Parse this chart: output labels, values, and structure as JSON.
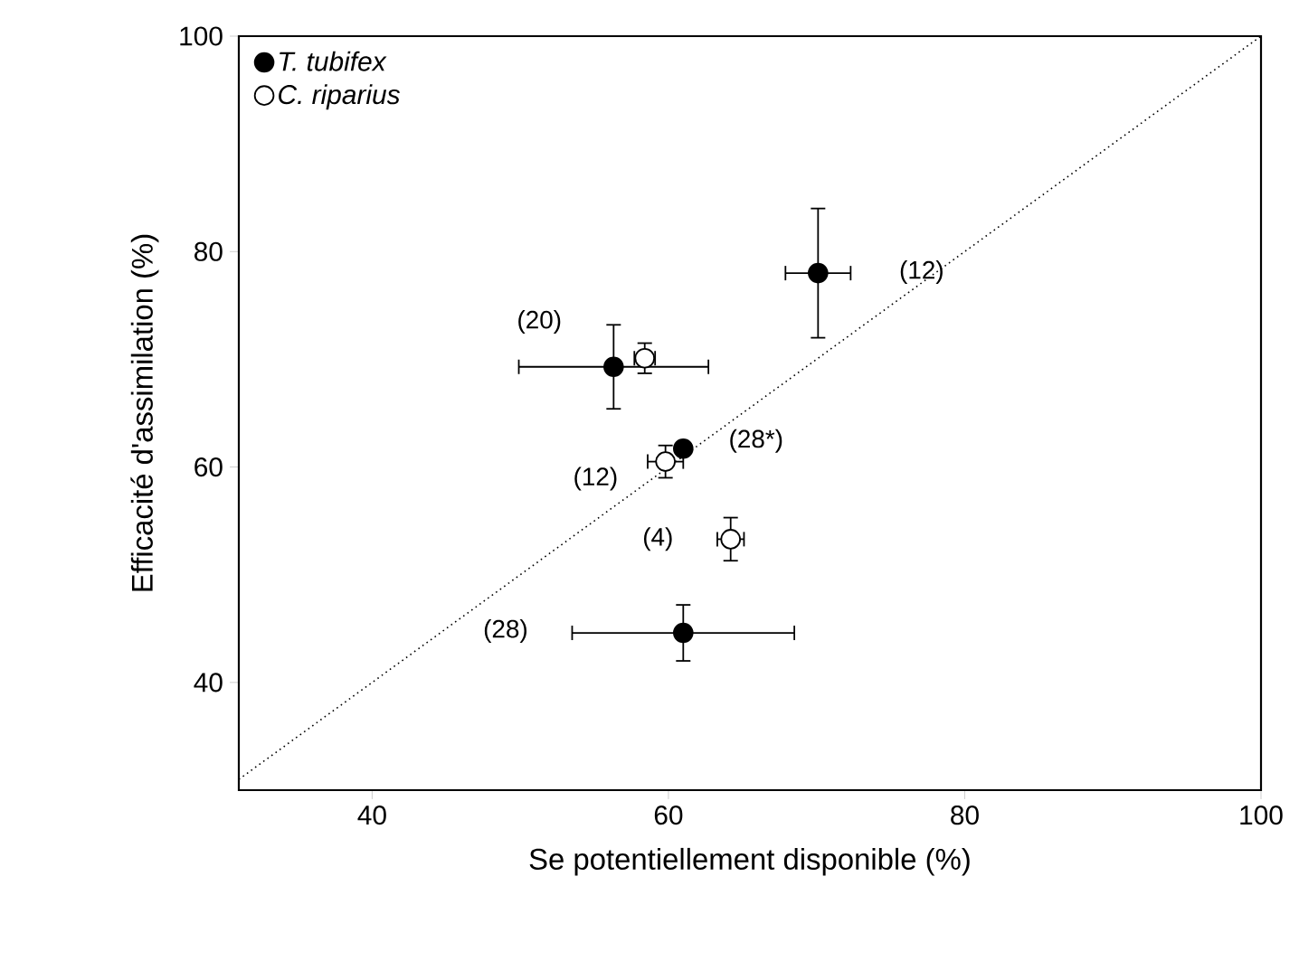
{
  "chart_data": {
    "type": "scatter",
    "xlabel": "Se potentiellement disponible (%)",
    "ylabel": "Efficacité d'assimilation (%)",
    "xlim": [
      31,
      100
    ],
    "ylim": [
      30,
      100
    ],
    "xticks": [
      40,
      60,
      80,
      100
    ],
    "yticks": [
      40,
      60,
      80,
      100
    ],
    "grid": false,
    "legend": "top left",
    "series": [
      {
        "name": "*T. tubifex*",
        "color": "#000000",
        "marker": "circle",
        "x": [
          70.1,
          56.3,
          61.0,
          61.0
        ],
        "values": [
          78,
          69.3,
          61.7,
          44.6
        ],
        "xerrors": [
          2.2,
          6.4,
          null,
          7.5
        ],
        "errors": [
          6.0,
          3.9,
          null,
          2.6
        ]
      },
      {
        "name": "*C. riparius*",
        "color": "#ffffff",
        "marker": "circle",
        "x": [
          58.4,
          59.8,
          64.2
        ],
        "values": [
          70.1,
          60.5,
          53.3
        ],
        "xerrors": [
          0.7,
          1.2,
          0.9
        ],
        "errors": [
          1.4,
          1.5,
          2.0
        ]
      },
      {
        "type": "line",
        "color": "#000000",
        "line_style": "dotted",
        "marker": "none",
        "x": [
          31,
          100
        ],
        "values": [
          31,
          100
        ]
      }
    ],
    "annotations": [
      "(12)",
      "(20)",
      "(28*)",
      "(12)",
      "(4)",
      "(28)"
    ]
  }
}
